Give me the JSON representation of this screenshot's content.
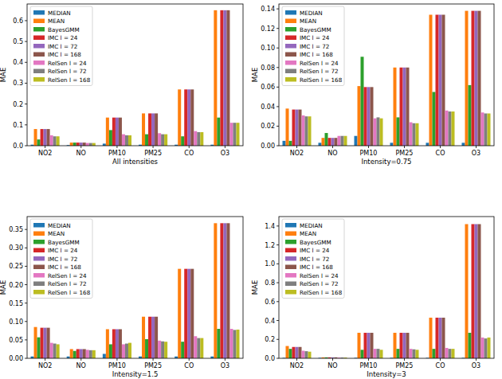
{
  "chart_data": [
    {
      "type": "bar",
      "x_label": "All intensities",
      "y_label": "MAE",
      "categories": [
        "NO2",
        "NO",
        "PM10",
        "PM25",
        "CO",
        "O3"
      ],
      "ylim": [
        0,
        0.68
      ],
      "yticks": [
        {
          "value": 0,
          "label": "0.0"
        },
        0.1,
        0.2,
        0.3,
        0.4,
        0.5,
        0.6
      ],
      "legend": "upper-left",
      "grid": false,
      "series": [
        {
          "name": "MEDIAN",
          "color": "#1f77b4",
          "values": [
            0.005,
            0.003,
            0.01,
            0.005,
            0.005,
            0.005
          ]
        },
        {
          "name": "MEAN",
          "color": "#ff7f0e",
          "values": [
            0.08,
            0.015,
            0.135,
            0.155,
            0.27,
            0.65
          ]
        },
        {
          "name": "BayesGMM",
          "color": "#2ca02c",
          "values": [
            0.03,
            0.015,
            0.075,
            0.055,
            0.045,
            0.135
          ]
        },
        {
          "name": "IMC l = 24",
          "color": "#d62728",
          "values": [
            0.08,
            0.015,
            0.135,
            0.155,
            0.27,
            0.65
          ]
        },
        {
          "name": "IMC l = 72",
          "color": "#9467bd",
          "values": [
            0.08,
            0.015,
            0.135,
            0.155,
            0.27,
            0.65
          ]
        },
        {
          "name": "IMC l = 168",
          "color": "#8c564b",
          "values": [
            0.08,
            0.015,
            0.135,
            0.155,
            0.27,
            0.65
          ]
        },
        {
          "name": "RelSen l = 24",
          "color": "#e377c2",
          "values": [
            0.05,
            0.013,
            0.055,
            0.06,
            0.07,
            0.11
          ]
        },
        {
          "name": "RelSen l = 72",
          "color": "#7f7f7f",
          "values": [
            0.045,
            0.013,
            0.05,
            0.055,
            0.065,
            0.11
          ]
        },
        {
          "name": "RelSen l = 168",
          "color": "#bcbd22",
          "values": [
            0.045,
            0.013,
            0.05,
            0.055,
            0.065,
            0.11
          ]
        }
      ]
    },
    {
      "type": "bar",
      "x_label": "Intensity=0.75",
      "y_label": "MAE",
      "categories": [
        "NO2",
        "NO",
        "PM10",
        "PM25",
        "CO",
        "O3"
      ],
      "ylim": [
        0,
        0.145
      ],
      "yticks": [
        {
          "value": 0,
          "label": "0.00"
        },
        {
          "value": 0.02,
          "label": "0.02"
        },
        {
          "value": 0.04,
          "label": "0.04"
        },
        {
          "value": 0.06,
          "label": "0.06"
        },
        {
          "value": 0.08,
          "label": "0.08"
        },
        {
          "value": 0.1,
          "label": "0.10"
        },
        {
          "value": 0.12,
          "label": "0.12"
        },
        {
          "value": 0.14,
          "label": "0.14"
        }
      ],
      "legend": "upper-left",
      "grid": false,
      "series": [
        {
          "name": "MEDIAN",
          "color": "#1f77b4",
          "values": [
            0.005,
            0.003,
            0.01,
            0.003,
            0.003,
            0.003
          ]
        },
        {
          "name": "MEAN",
          "color": "#ff7f0e",
          "values": [
            0.038,
            0.008,
            0.061,
            0.08,
            0.134,
            0.138
          ]
        },
        {
          "name": "BayesGMM",
          "color": "#2ca02c",
          "values": [
            0.005,
            0.013,
            0.091,
            0.029,
            0.055,
            0.062
          ]
        },
        {
          "name": "IMC l = 24",
          "color": "#d62728",
          "values": [
            0.037,
            0.008,
            0.06,
            0.08,
            0.134,
            0.138
          ]
        },
        {
          "name": "IMC l = 72",
          "color": "#9467bd",
          "values": [
            0.037,
            0.008,
            0.06,
            0.08,
            0.134,
            0.138
          ]
        },
        {
          "name": "IMC l = 168",
          "color": "#8c564b",
          "values": [
            0.037,
            0.008,
            0.06,
            0.08,
            0.134,
            0.138
          ]
        },
        {
          "name": "RelSen l = 24",
          "color": "#e377c2",
          "values": [
            0.031,
            0.01,
            0.028,
            0.024,
            0.036,
            0.034
          ]
        },
        {
          "name": "RelSen l = 72",
          "color": "#7f7f7f",
          "values": [
            0.03,
            0.01,
            0.029,
            0.023,
            0.035,
            0.033
          ]
        },
        {
          "name": "RelSen l = 168",
          "color": "#bcbd22",
          "values": [
            0.03,
            0.01,
            0.028,
            0.023,
            0.035,
            0.033
          ]
        }
      ]
    },
    {
      "type": "bar",
      "x_label": "Intensity=1.5",
      "y_label": "MAE",
      "categories": [
        "NO2",
        "NO",
        "PM10",
        "PM25",
        "CO",
        "O3"
      ],
      "ylim": [
        0,
        0.385
      ],
      "yticks": [
        {
          "value": 0,
          "label": "0.00"
        },
        0.05,
        {
          "value": 0.1,
          "label": "0.10"
        },
        0.15,
        {
          "value": 0.2,
          "label": "0.20"
        },
        0.25,
        {
          "value": 0.3,
          "label": "0.30"
        },
        0.35
      ],
      "legend": "upper-left",
      "grid": false,
      "series": [
        {
          "name": "MEDIAN",
          "color": "#1f77b4",
          "values": [
            0.005,
            0.005,
            0.012,
            0.005,
            0.005,
            0.005
          ]
        },
        {
          "name": "MEAN",
          "color": "#ff7f0e",
          "values": [
            0.085,
            0.025,
            0.079,
            0.113,
            0.243,
            0.367
          ]
        },
        {
          "name": "BayesGMM",
          "color": "#2ca02c",
          "values": [
            0.057,
            0.02,
            0.038,
            0.052,
            0.045,
            0.08
          ]
        },
        {
          "name": "IMC l = 24",
          "color": "#d62728",
          "values": [
            0.083,
            0.025,
            0.079,
            0.113,
            0.243,
            0.367
          ]
        },
        {
          "name": "IMC l = 72",
          "color": "#9467bd",
          "values": [
            0.083,
            0.025,
            0.079,
            0.113,
            0.243,
            0.367
          ]
        },
        {
          "name": "IMC l = 168",
          "color": "#8c564b",
          "values": [
            0.083,
            0.025,
            0.079,
            0.113,
            0.243,
            0.367
          ]
        },
        {
          "name": "RelSen l = 24",
          "color": "#e377c2",
          "values": [
            0.042,
            0.023,
            0.038,
            0.048,
            0.06,
            0.08
          ]
        },
        {
          "name": "RelSen l = 72",
          "color": "#7f7f7f",
          "values": [
            0.04,
            0.022,
            0.04,
            0.046,
            0.055,
            0.077
          ]
        },
        {
          "name": "RelSen l = 168",
          "color": "#bcbd22",
          "values": [
            0.038,
            0.022,
            0.042,
            0.045,
            0.055,
            0.078
          ]
        }
      ]
    },
    {
      "type": "bar",
      "x_label": "Intensity=3",
      "y_label": "MAE",
      "categories": [
        "NO2",
        "NO",
        "PM10",
        "PM25",
        "CO",
        "O3"
      ],
      "ylim": [
        0,
        1.5
      ],
      "yticks": [
        {
          "value": 0,
          "label": "0.0"
        },
        0.2,
        0.4,
        0.6,
        0.8,
        {
          "value": 1,
          "label": "1.0"
        },
        1.2,
        1.4
      ],
      "legend": "upper-left",
      "grid": false,
      "series": [
        {
          "name": "MEDIAN",
          "color": "#1f77b4",
          "values": [
            0.005,
            0.005,
            0.005,
            0.005,
            0.005,
            0.005
          ]
        },
        {
          "name": "MEAN",
          "color": "#ff7f0e",
          "values": [
            0.13,
            0.01,
            0.27,
            0.27,
            0.43,
            1.42
          ]
        },
        {
          "name": "BayesGMM",
          "color": "#2ca02c",
          "values": [
            0.1,
            0.01,
            0.09,
            0.1,
            0.1,
            0.27
          ]
        },
        {
          "name": "IMC l = 24",
          "color": "#d62728",
          "values": [
            0.12,
            0.01,
            0.27,
            0.27,
            0.43,
            1.42
          ]
        },
        {
          "name": "IMC l = 72",
          "color": "#9467bd",
          "values": [
            0.12,
            0.01,
            0.27,
            0.27,
            0.43,
            1.42
          ]
        },
        {
          "name": "IMC l = 168",
          "color": "#8c564b",
          "values": [
            0.12,
            0.01,
            0.27,
            0.27,
            0.43,
            1.42
          ]
        },
        {
          "name": "RelSen l = 24",
          "color": "#e377c2",
          "values": [
            0.08,
            0.008,
            0.1,
            0.1,
            0.11,
            0.22
          ]
        },
        {
          "name": "RelSen l = 72",
          "color": "#7f7f7f",
          "values": [
            0.075,
            0.008,
            0.1,
            0.095,
            0.1,
            0.21
          ]
        },
        {
          "name": "RelSen l = 168",
          "color": "#bcbd22",
          "values": [
            0.07,
            0.008,
            0.09,
            0.09,
            0.1,
            0.22
          ]
        }
      ]
    }
  ]
}
